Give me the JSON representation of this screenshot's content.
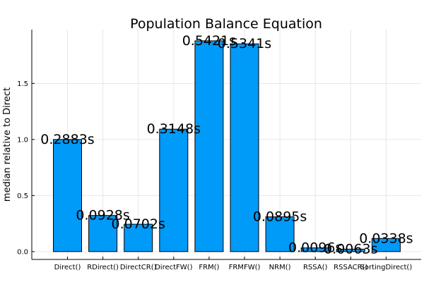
{
  "chart_data": {
    "type": "bar",
    "title": "Population Balance Equation",
    "xlabel": "",
    "ylabel": "median relative to Direct",
    "categories": [
      "Direct()",
      "RDirect()",
      "DirectCR()",
      "DirectFW()",
      "FRM()",
      "FRMFW()",
      "NRM()",
      "RSSA()",
      "RSSACR()",
      "SortingDirect()"
    ],
    "values": [
      1.0,
      0.322,
      0.244,
      1.092,
      1.88,
      1.853,
      0.31,
      0.033,
      0.022,
      0.117
    ],
    "data_labels": [
      "0.2883s",
      "0.0928s",
      "0.0702s",
      "0.3148s",
      "0.5421s",
      "0.5341s",
      "0.0895s",
      "0.0096s",
      "0.0063s",
      "0.0338s"
    ],
    "ylim": [
      -0.07,
      1.98
    ],
    "yticks": [
      0.0,
      0.5,
      1.0,
      1.5
    ],
    "ytick_labels": [
      "0.0",
      "0.5",
      "1.0",
      "1.5"
    ],
    "grid": true,
    "legend": "none",
    "bar_color": "#009af9"
  }
}
